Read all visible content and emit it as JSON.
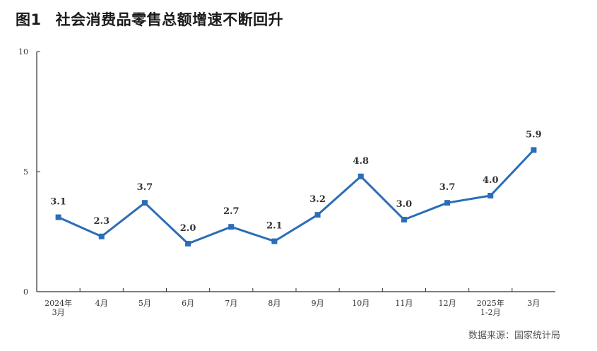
{
  "header": {
    "figure_label": "图1",
    "title": "社会消费品零售总额增速不断回升"
  },
  "source": "数据来源：国家统计局",
  "chart_data": {
    "type": "line",
    "title": "社会消费品零售总额增速不断回升",
    "categories": [
      [
        "2024年",
        "3月"
      ],
      [
        "4月"
      ],
      [
        "5月"
      ],
      [
        "6月"
      ],
      [
        "7月"
      ],
      [
        "8月"
      ],
      [
        "9月"
      ],
      [
        "10月"
      ],
      [
        "11月"
      ],
      [
        "12月"
      ],
      [
        "2025年",
        "1-2月"
      ],
      [
        "3月"
      ]
    ],
    "series": [
      {
        "values": [
          3.1,
          2.3,
          3.7,
          2.0,
          2.7,
          2.1,
          3.2,
          4.8,
          3.0,
          3.7,
          4.0,
          5.9
        ]
      }
    ],
    "data_labels": [
      "3.1",
      "2.3",
      "3.7",
      "2.0",
      "2.7",
      "2.1",
      "3.2",
      "4.8",
      "3.0",
      "3.7",
      "4.0",
      "5.9"
    ],
    "ylim": [
      0,
      10
    ],
    "yticks": [
      0,
      5,
      10
    ],
    "grid": false,
    "line_color": "#2a6db8"
  }
}
